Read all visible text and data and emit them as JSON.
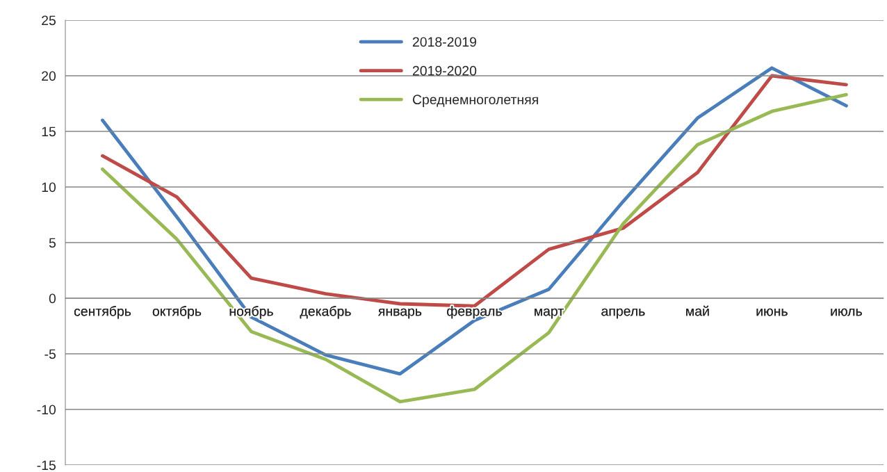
{
  "chart_data": {
    "type": "line",
    "categories": [
      "сентябрь",
      "октябрь",
      "ноябрь",
      "декабрь",
      "январь",
      "февраль",
      "март",
      "апрель",
      "май",
      "июнь",
      "июль"
    ],
    "series": [
      {
        "name": "2018-2019",
        "color": "#4a7ebb",
        "values": [
          16.0,
          7.3,
          -1.7,
          -5.1,
          -6.8,
          -2.0,
          0.8,
          8.7,
          16.2,
          20.7,
          17.3
        ]
      },
      {
        "name": "2019-2020",
        "color": "#be4b48",
        "values": [
          12.8,
          9.1,
          1.8,
          0.4,
          -0.5,
          -0.7,
          4.4,
          6.3,
          11.3,
          20.0,
          19.2
        ]
      },
      {
        "name": "Среднемноголетняя",
        "color": "#98b954",
        "values": [
          11.6,
          5.3,
          -3.0,
          -5.5,
          -9.3,
          -8.2,
          -3.1,
          6.7,
          13.8,
          16.8,
          18.3
        ]
      }
    ],
    "ylim": [
      -15,
      25
    ],
    "yticks": [
      -15,
      -10,
      -5,
      0,
      5,
      10,
      15,
      20,
      25
    ],
    "grid": "y",
    "legend": "top",
    "marker": "none",
    "line_style": "solid"
  }
}
